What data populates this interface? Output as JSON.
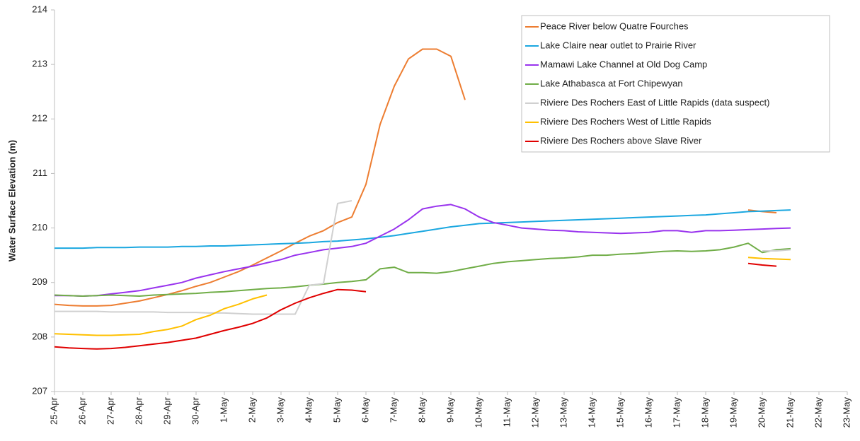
{
  "chart_data": {
    "type": "line",
    "y_label": "Water Surface Elevation (m)",
    "categories": [
      "25-Apr",
      null,
      "26-Apr",
      null,
      "27-Apr",
      null,
      "28-Apr",
      null,
      "29-Apr",
      null,
      "30-Apr",
      null,
      "1-May",
      null,
      "2-May",
      null,
      "3-May",
      null,
      "4-May",
      null,
      "5-May",
      null,
      "6-May",
      null,
      "7-May",
      null,
      "8-May",
      null,
      "9-May",
      null,
      "10-May",
      null,
      "11-May",
      null,
      "12-May",
      null,
      "13-May",
      null,
      "14-May",
      null,
      "15-May",
      null,
      "16-May",
      null,
      "17-May",
      null,
      "18-May",
      null,
      "19-May",
      null,
      "20-May",
      null,
      "21-May",
      null,
      "22-May",
      null,
      "23-May"
    ],
    "ylim": [
      207,
      214
    ],
    "yticks": [
      207,
      208,
      209,
      210,
      211,
      212,
      213,
      214
    ],
    "grid": false,
    "legend": "upper right",
    "series": [
      {
        "name": "Peace River below Quatre Fourches",
        "color": "#ed7d31",
        "values": [
          208.6,
          208.58,
          208.57,
          208.57,
          208.58,
          208.62,
          208.66,
          208.72,
          208.78,
          208.85,
          208.93,
          209.0,
          209.1,
          209.2,
          209.32,
          209.45,
          209.58,
          209.72,
          209.85,
          209.95,
          210.1,
          210.2,
          210.8,
          211.9,
          212.6,
          213.1,
          213.28,
          213.28,
          213.15,
          212.35,
          null,
          null,
          null,
          null,
          null,
          null,
          null,
          null,
          null,
          null,
          null,
          null,
          null,
          null,
          null,
          null,
          null,
          null,
          null,
          210.33,
          210.3,
          210.28,
          null,
          null,
          null,
          null,
          null
        ]
      },
      {
        "name": "Lake Claire near outlet to Prairie River",
        "color": "#1aa7e0",
        "values": [
          209.63,
          209.63,
          209.63,
          209.64,
          209.64,
          209.64,
          209.65,
          209.65,
          209.65,
          209.66,
          209.66,
          209.67,
          209.67,
          209.68,
          209.69,
          209.7,
          209.71,
          209.72,
          209.73,
          209.75,
          209.76,
          209.78,
          209.8,
          209.83,
          209.86,
          209.9,
          209.94,
          209.98,
          210.02,
          210.05,
          210.08,
          210.09,
          210.1,
          210.11,
          210.12,
          210.13,
          210.14,
          210.15,
          210.16,
          210.17,
          210.18,
          210.19,
          210.2,
          210.21,
          210.22,
          210.23,
          210.24,
          210.26,
          210.28,
          210.3,
          210.31,
          210.32,
          210.33,
          null,
          null,
          null,
          null
        ]
      },
      {
        "name": "Mamawi Lake Channel at Old Dog Camp",
        "color": "#9933ee",
        "values": [
          208.76,
          208.76,
          208.75,
          208.76,
          208.79,
          208.82,
          208.85,
          208.9,
          208.95,
          209.0,
          209.08,
          209.14,
          209.2,
          209.25,
          209.3,
          209.36,
          209.42,
          209.5,
          209.55,
          209.6,
          209.63,
          209.66,
          209.72,
          209.85,
          209.98,
          210.15,
          210.35,
          210.4,
          210.43,
          210.35,
          210.2,
          210.1,
          210.05,
          210.0,
          209.98,
          209.96,
          209.95,
          209.93,
          209.92,
          209.91,
          209.9,
          209.91,
          209.92,
          209.95,
          209.95,
          209.92,
          209.95,
          209.95,
          209.96,
          209.97,
          209.98,
          209.99,
          210.0,
          null,
          null,
          null,
          null
        ]
      },
      {
        "name": "Lake Athabasca at Fort Chipewyan",
        "color": "#70ad47",
        "values": [
          208.77,
          208.76,
          208.75,
          208.76,
          208.77,
          208.76,
          208.75,
          208.77,
          208.78,
          208.79,
          208.8,
          208.82,
          208.83,
          208.85,
          208.87,
          208.89,
          208.9,
          208.92,
          208.95,
          208.97,
          209.0,
          209.02,
          209.05,
          209.25,
          209.28,
          209.18,
          209.18,
          209.17,
          209.2,
          209.25,
          209.3,
          209.35,
          209.38,
          209.4,
          209.42,
          209.44,
          209.45,
          209.47,
          209.5,
          209.5,
          209.52,
          209.53,
          209.55,
          209.57,
          209.58,
          209.57,
          209.58,
          209.6,
          209.65,
          209.72,
          209.55,
          209.6,
          209.62,
          null,
          null,
          null,
          null
        ]
      },
      {
        "name": "Riviere Des Rochers East of Little Rapids (data suspect)",
        "color": "#d0d0d0",
        "values": [
          208.47,
          208.47,
          208.47,
          208.47,
          208.46,
          208.46,
          208.46,
          208.46,
          208.45,
          208.45,
          208.45,
          208.44,
          208.44,
          208.43,
          208.42,
          208.42,
          208.42,
          208.42,
          208.95,
          208.98,
          210.45,
          210.5,
          null,
          null,
          null,
          null,
          null,
          null,
          null,
          null,
          null,
          null,
          null,
          null,
          null,
          null,
          null,
          null,
          null,
          null,
          null,
          null,
          null,
          null,
          null,
          null,
          null,
          null,
          null,
          null,
          209.58,
          209.58,
          209.6,
          null,
          null,
          null,
          null
        ]
      },
      {
        "name": "Riviere Des Rochers West of Little Rapids",
        "color": "#ffc000",
        "values": [
          208.06,
          208.05,
          208.04,
          208.03,
          208.03,
          208.04,
          208.05,
          208.1,
          208.14,
          208.2,
          208.32,
          208.4,
          208.52,
          208.6,
          208.7,
          208.77,
          null,
          null,
          null,
          null,
          null,
          null,
          null,
          null,
          null,
          null,
          null,
          null,
          null,
          null,
          null,
          null,
          null,
          null,
          null,
          null,
          null,
          null,
          null,
          null,
          null,
          null,
          null,
          null,
          null,
          null,
          null,
          null,
          null,
          209.46,
          209.44,
          209.43,
          209.42,
          null,
          null,
          null,
          null
        ]
      },
      {
        "name": "Riviere Des Rochers above Slave River",
        "color": "#e00000",
        "values": [
          207.82,
          207.8,
          207.79,
          207.78,
          207.79,
          207.81,
          207.84,
          207.87,
          207.9,
          207.94,
          207.98,
          208.05,
          208.12,
          208.18,
          208.25,
          208.35,
          208.5,
          208.62,
          208.72,
          208.8,
          208.87,
          208.86,
          208.83,
          null,
          null,
          null,
          null,
          null,
          null,
          null,
          null,
          null,
          null,
          null,
          null,
          null,
          null,
          null,
          null,
          null,
          null,
          null,
          null,
          null,
          null,
          null,
          null,
          null,
          null,
          209.35,
          209.32,
          209.3,
          null,
          null,
          null,
          null,
          null
        ]
      }
    ]
  }
}
